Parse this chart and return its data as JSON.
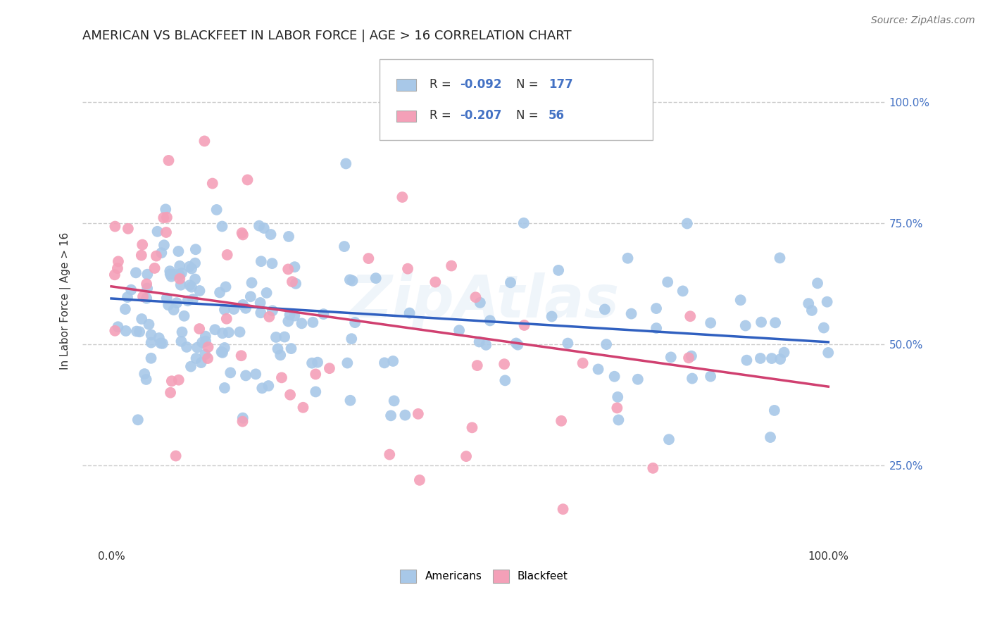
{
  "title": "AMERICAN VS BLACKFEET IN LABOR FORCE | AGE > 16 CORRELATION CHART",
  "source": "Source: ZipAtlas.com",
  "ylabel": "In Labor Force | Age > 16",
  "y_tick_labels": [
    "25.0%",
    "50.0%",
    "75.0%",
    "100.0%"
  ],
  "y_tick_positions": [
    0.25,
    0.5,
    0.75,
    1.0
  ],
  "americans_R": -0.092,
  "americans_N": 177,
  "blackfeet_R": -0.207,
  "blackfeet_N": 56,
  "american_color": "#a8c8e8",
  "blackfeet_color": "#f4a0b8",
  "trendline_american_color": "#3060c0",
  "trendline_blackfeet_color": "#d04070",
  "legend_label_american": "Americans",
  "legend_label_blackfeet": "Blackfeet",
  "r_n_color": "#4472c4",
  "background_color": "#ffffff",
  "grid_color": "#cccccc",
  "title_fontsize": 13,
  "source_fontsize": 10,
  "axis_label_fontsize": 11,
  "tick_fontsize": 11,
  "legend_fontsize": 11,
  "watermark": "ZipAtlas",
  "american_seed": 42,
  "blackfeet_seed": 7
}
